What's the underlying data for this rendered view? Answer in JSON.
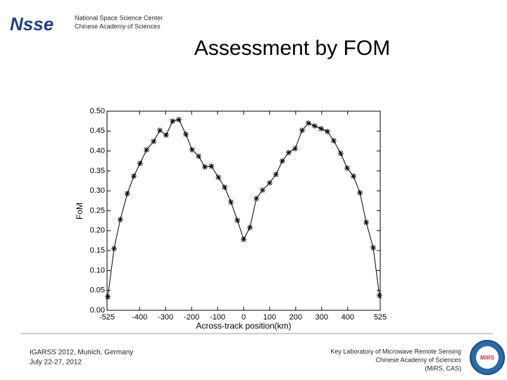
{
  "header": {
    "logo": "Nsse",
    "org_line1": "National Space Science Center",
    "org_line2": "Chinese Academy of Sciences"
  },
  "slide_title": "Assessment by FOM",
  "chart_data": {
    "type": "line",
    "x_label": "Across-track position(km)",
    "y_label": "FoM",
    "x": [
      -522,
      -498,
      -474,
      -447,
      -422,
      -398,
      -373,
      -346,
      -322,
      -298,
      -273,
      -249,
      -222,
      -198,
      -173,
      -149,
      -124,
      -97,
      -73,
      -49,
      -24,
      0,
      24,
      49,
      73,
      100,
      124,
      149,
      173,
      198,
      225,
      249,
      273,
      298,
      322,
      346,
      373,
      398,
      422,
      447,
      471,
      498,
      522
    ],
    "values": [
      0.034,
      0.155,
      0.228,
      0.293,
      0.337,
      0.369,
      0.403,
      0.424,
      0.452,
      0.44,
      0.475,
      0.479,
      0.442,
      0.403,
      0.387,
      0.36,
      0.362,
      0.334,
      0.309,
      0.272,
      0.226,
      0.178,
      0.208,
      0.281,
      0.302,
      0.32,
      0.341,
      0.375,
      0.396,
      0.406,
      0.452,
      0.47,
      0.463,
      0.456,
      0.449,
      0.426,
      0.394,
      0.357,
      0.337,
      0.295,
      0.221,
      0.157,
      0.037
    ],
    "color": "#000000",
    "xlim": [
      -525,
      525
    ],
    "xticks": [
      -525,
      -400,
      -300,
      -200,
      -100,
      0,
      100,
      200,
      300,
      400,
      525
    ],
    "ylim": [
      0,
      0.5
    ],
    "yticks": [
      {
        "value": 0,
        "label": "0.00"
      },
      {
        "value": 0.05,
        "label": "0.05"
      },
      {
        "value": 0.1,
        "label": "0.10"
      },
      {
        "value": 0.15,
        "label": "0.15"
      },
      {
        "value": 0.2,
        "label": "0.20"
      },
      {
        "value": 0.25,
        "label": "0.25"
      },
      {
        "value": 0.3,
        "label": "0.30"
      },
      {
        "value": 0.35,
        "label": "0.35"
      },
      {
        "value": 0.4,
        "label": "0.40"
      },
      {
        "value": 0.45,
        "label": "0.45"
      },
      {
        "value": 0.5,
        "label": "0.50"
      }
    ]
  },
  "footer": {
    "left_line1": "IGARSS 2012, Munich, Germany",
    "left_line2": "July 22-27, 2012",
    "right_line1": "Key Laboratory of Microwave Remote Sensing",
    "right_line2": "Chinese Academy of Sciences",
    "right_line3": "(MiRS, CAS)",
    "badge": "MiRS"
  }
}
